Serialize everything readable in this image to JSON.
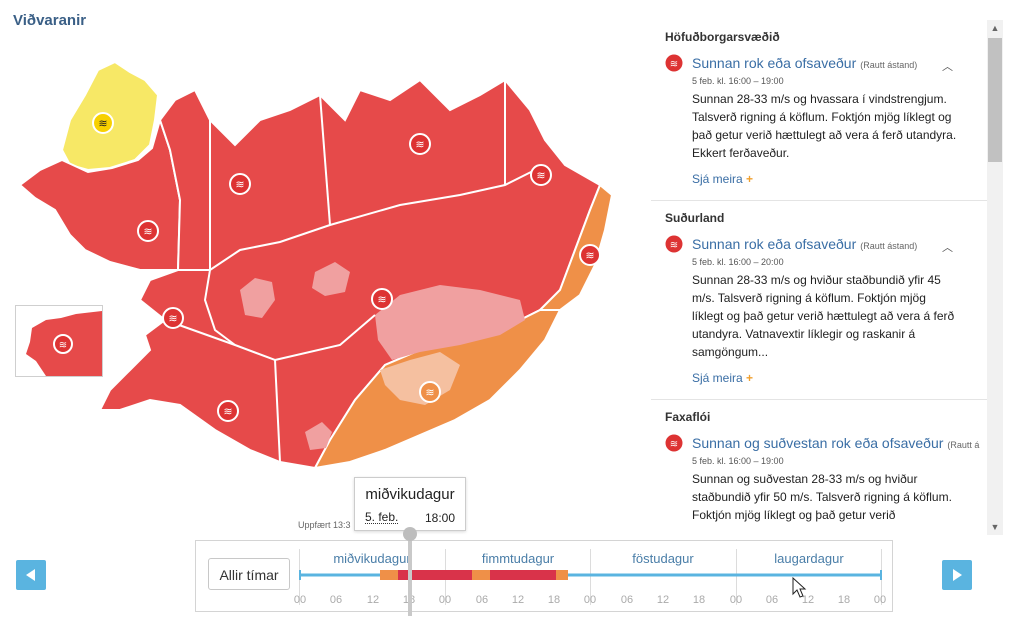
{
  "page": {
    "title": "Viðvaranir",
    "updated": "Uppfært 13:3"
  },
  "tooltip": {
    "day": "miðvikudagur",
    "date": "5. feb.",
    "time": "18:00"
  },
  "timeline": {
    "all_times_label": "Allir tímar",
    "days": [
      "miðvikudagur",
      "fimmtudagur",
      "föstudagur",
      "laugardagur"
    ],
    "hours": [
      "00",
      "06",
      "12",
      "18",
      "00",
      "06",
      "12",
      "18",
      "00",
      "06",
      "12",
      "18",
      "00",
      "06",
      "12",
      "18",
      "00"
    ],
    "selected": "miðvikudagur 5. feb. 18:00"
  },
  "colors": {
    "red": "#e64a4a",
    "orange": "#ef9048",
    "yellow": "#f7e866",
    "pink": "#f0a0a0",
    "accent": "#5ab4e0",
    "link": "#3a6ea5"
  },
  "alerts": [
    {
      "region": "Höfuðborgarsvæðið",
      "title": "Sunnan rok eða ofsaveður",
      "level": "(Rautt ástand)",
      "time": "5 feb. kl. 16:00 – 19:00",
      "description": "Sunnan 28-33 m/s og hvassara í vindstrengjum. Talsverð rigning á köflum. Foktjón mjög líklegt og það getur verið hættulegt að vera á ferð utandyra. Ekkert ferðaveður.",
      "more": "Sjá meira",
      "icon": "wind-warning-icon"
    },
    {
      "region": "Suðurland",
      "title": "Sunnan rok eða ofsaveður",
      "level": "(Rautt ástand)",
      "time": "5 feb. kl. 16:00 – 20:00",
      "description": "Sunnan 28-33 m/s og hviður staðbundið yfir 45 m/s. Talsverð rigning á köflum. Foktjón mjög líklegt og það getur verið hættulegt að vera á ferð utandyra. Vatnavextir líklegir og raskanir á samgöngum...",
      "more": "Sjá meira",
      "icon": "wind-warning-icon"
    },
    {
      "region": "Faxaflói",
      "title": "Sunnan og suðvestan rok eða ofsaveður",
      "level": "(Rautt á",
      "time": "5 feb. kl. 16:00 – 19:00",
      "description": "Sunnan og suðvestan 28-33 m/s og hviður staðbundið yfir 50 m/s. Talsverð rigning á köflum. Foktjón mjög líklegt og það getur verið",
      "more": "",
      "icon": "wind-warning-icon"
    }
  ]
}
